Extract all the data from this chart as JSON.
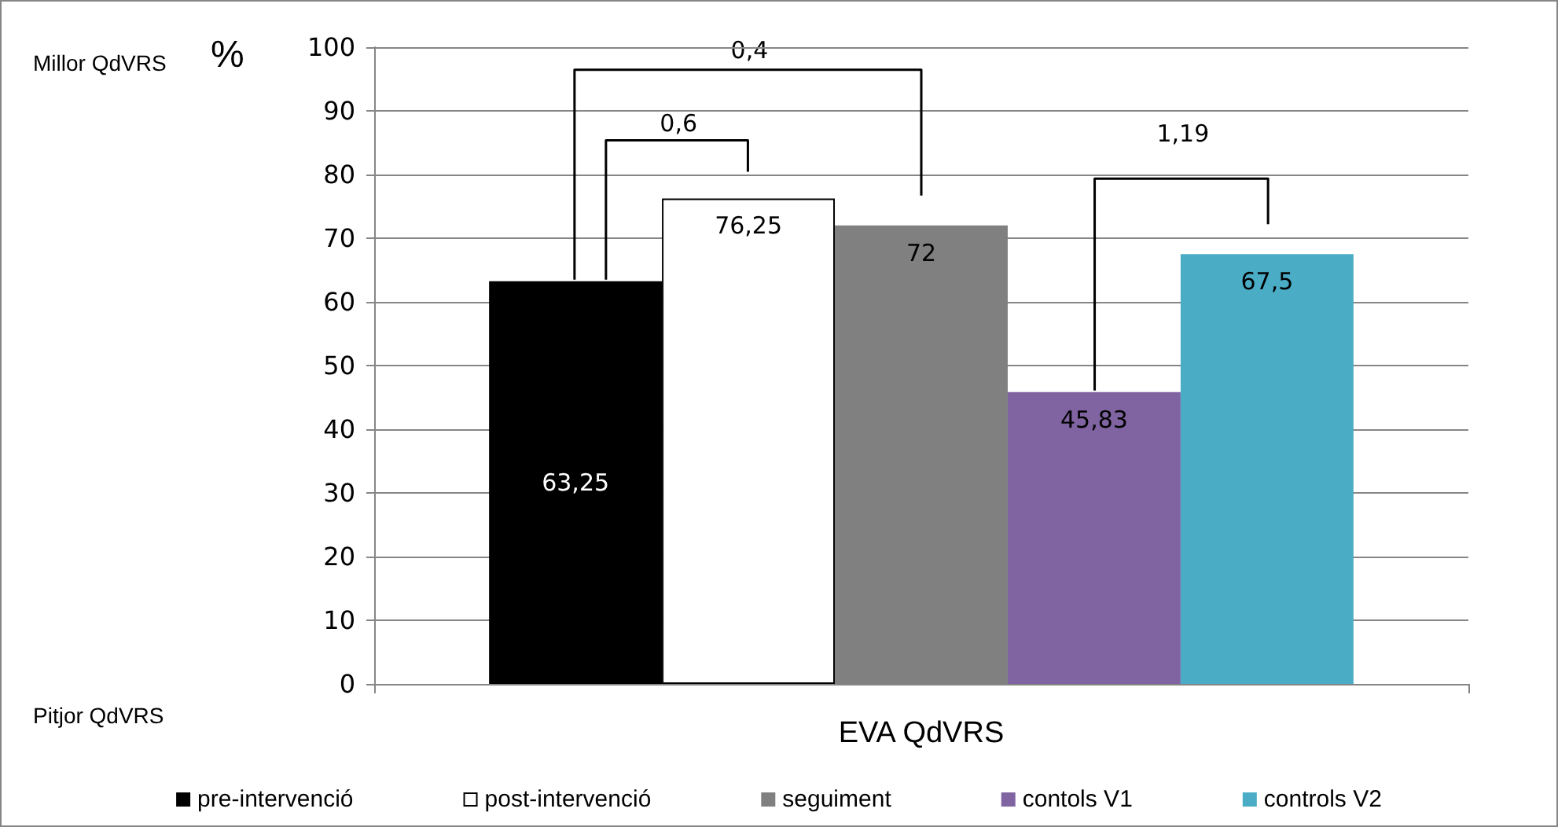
{
  "chart_data": {
    "type": "bar",
    "categories": [
      "EVA QdVRS"
    ],
    "ylabel": "%",
    "ylim": [
      0,
      100
    ],
    "yticks": [
      0,
      10,
      20,
      30,
      40,
      50,
      60,
      70,
      80,
      90,
      100
    ],
    "grid": "y",
    "legend": "bottom",
    "series": [
      {
        "name": "pre-intervenció",
        "color": "#000000",
        "values": [
          63.25
        ],
        "value_labels": [
          "63,25"
        ]
      },
      {
        "name": "post-intervenció",
        "color": "#ffffff",
        "values": [
          76.25
        ],
        "value_labels": [
          "76,25"
        ]
      },
      {
        "name": "seguiment",
        "color": "#808080",
        "values": [
          72
        ],
        "value_labels": [
          "72"
        ]
      },
      {
        "name": "contols V1",
        "color": "#8064a2",
        "values": [
          45.83
        ],
        "value_labels": [
          "45,83"
        ]
      },
      {
        "name": "controls V2",
        "color": "#4bacc6",
        "values": [
          67.5
        ],
        "value_labels": [
          "67,5"
        ]
      }
    ],
    "annotations": [
      "Millor QdVRS",
      "Pitjor QdVRS",
      "0,6",
      "0,4",
      "1,19"
    ]
  }
}
